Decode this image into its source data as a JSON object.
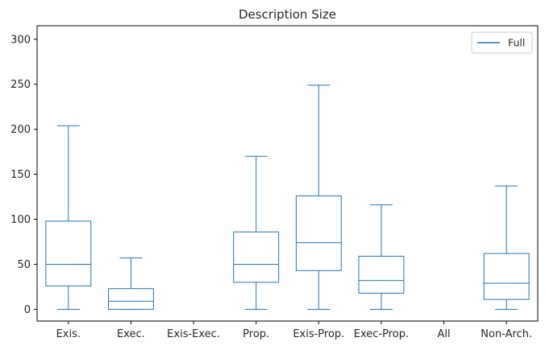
{
  "chart_data": {
    "type": "box",
    "title": "Description Size",
    "xlabel": "",
    "ylabel": "",
    "ylim": [
      -13,
      315
    ],
    "yticks": [
      0,
      50,
      100,
      150,
      200,
      250,
      300
    ],
    "categories": [
      "Exis.",
      "Exec.",
      "Exis-Exec.",
      "Prop.",
      "Exis-Prop.",
      "Exec-Prop.",
      "All",
      "Non-Arch."
    ],
    "series": [
      {
        "name": "Full",
        "color": "#1f77b4",
        "boxes": [
          {
            "whislo": 0,
            "q1": 26,
            "med": 50,
            "q3": 98,
            "whishi": 204
          },
          {
            "whislo": 0,
            "q1": 0,
            "med": 9,
            "q3": 23,
            "whishi": 57
          },
          null,
          {
            "whislo": 0,
            "q1": 30,
            "med": 50,
            "q3": 86,
            "whishi": 170
          },
          {
            "whislo": 0,
            "q1": 43,
            "med": 74,
            "q3": 126,
            "whishi": 249
          },
          {
            "whislo": 0,
            "q1": 18,
            "med": 32,
            "q3": 59,
            "whishi": 116
          },
          null,
          {
            "whislo": 0,
            "q1": 11,
            "med": 29,
            "q3": 62,
            "whishi": 137
          }
        ]
      }
    ],
    "legend": {
      "position": "top-right",
      "entries": [
        "Full"
      ]
    },
    "grid": false
  }
}
